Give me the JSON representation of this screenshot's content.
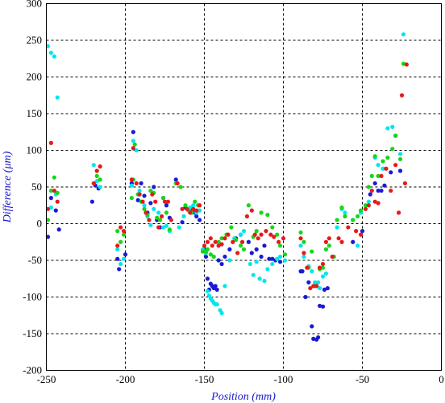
{
  "chart_data": {
    "type": "scatter",
    "xlabel": "Position (mm)",
    "ylabel": "Difference (μm)",
    "xlim": [
      -250,
      0
    ],
    "ylim": [
      -200,
      300
    ],
    "xticks": [
      -250,
      -200,
      -150,
      -100,
      -50,
      0
    ],
    "yticks": [
      -200,
      -150,
      -100,
      -50,
      0,
      50,
      100,
      150,
      200,
      250,
      300
    ],
    "grid": true,
    "series": [
      {
        "color": "#1a1ad6",
        "points": [
          [
            -249,
            -18
          ],
          [
            -247,
            35
          ],
          [
            -244,
            18
          ],
          [
            -242,
            -8
          ],
          [
            -221,
            30
          ],
          [
            -219,
            52
          ],
          [
            -217,
            48
          ],
          [
            -205,
            -48
          ],
          [
            -204,
            -62
          ],
          [
            -200,
            -42
          ],
          [
            -196,
            55
          ],
          [
            -195,
            125
          ],
          [
            -192,
            32
          ],
          [
            -190,
            55
          ],
          [
            -188,
            38
          ],
          [
            -186,
            15
          ],
          [
            -184,
            28
          ],
          [
            -182,
            50
          ],
          [
            -180,
            5
          ],
          [
            -178,
            -5
          ],
          [
            -176,
            35
          ],
          [
            -174,
            25
          ],
          [
            -172,
            8
          ],
          [
            -168,
            60
          ],
          [
            -164,
            2
          ],
          [
            -162,
            22
          ],
          [
            -158,
            18
          ],
          [
            -156,
            15
          ],
          [
            -155,
            10
          ],
          [
            -153,
            5
          ],
          [
            -150,
            -35
          ],
          [
            -149,
            -45
          ],
          [
            -148,
            -75
          ],
          [
            -147,
            -90
          ],
          [
            -146,
            -82
          ],
          [
            -145,
            -85
          ],
          [
            -144,
            -88
          ],
          [
            -143,
            -85
          ],
          [
            -142,
            -90
          ],
          [
            -141,
            -50
          ],
          [
            -139,
            -55
          ],
          [
            -137,
            -45
          ],
          [
            -134,
            -35
          ],
          [
            -130,
            -20
          ],
          [
            -127,
            -15
          ],
          [
            -122,
            -25
          ],
          [
            -120,
            -40
          ],
          [
            -117,
            -35
          ],
          [
            -114,
            -45
          ],
          [
            -112,
            -30
          ],
          [
            -109,
            -48
          ],
          [
            -107,
            -48
          ],
          [
            -105,
            -50
          ],
          [
            -102,
            -52
          ],
          [
            -89,
            -65
          ],
          [
            -88,
            -65
          ],
          [
            -86,
            -100
          ],
          [
            -84,
            -80
          ],
          [
            -82,
            -140
          ],
          [
            -81,
            -157
          ],
          [
            -79,
            -158
          ],
          [
            -78,
            -155
          ],
          [
            -77,
            -112
          ],
          [
            -75,
            -113
          ],
          [
            -74,
            -90
          ],
          [
            -72,
            -88
          ],
          [
            -56,
            -25
          ],
          [
            -50,
            -10
          ],
          [
            -45,
            40
          ],
          [
            -42,
            55
          ],
          [
            -40,
            45
          ],
          [
            -38,
            45
          ],
          [
            -36,
            52
          ],
          [
            -32,
            70
          ],
          [
            -29,
            120
          ],
          [
            -26,
            72
          ]
        ]
      },
      {
        "color": "#00e6ef",
        "points": [
          [
            -249,
            242
          ],
          [
            -247,
            233
          ],
          [
            -245,
            228
          ],
          [
            -243,
            172
          ],
          [
            -247,
            22
          ],
          [
            -244,
            40
          ],
          [
            -220,
            80
          ],
          [
            -218,
            58
          ],
          [
            -216,
            50
          ],
          [
            -205,
            -35
          ],
          [
            -203,
            -55
          ],
          [
            -201,
            -48
          ],
          [
            -196,
            52
          ],
          [
            -195,
            113
          ],
          [
            -193,
            100
          ],
          [
            -191,
            45
          ],
          [
            -188,
            25
          ],
          [
            -186,
            10
          ],
          [
            -184,
            -2
          ],
          [
            -182,
            20
          ],
          [
            -179,
            15
          ],
          [
            -176,
            -5
          ],
          [
            -174,
            -3
          ],
          [
            -172,
            -10
          ],
          [
            -166,
            -5
          ],
          [
            -163,
            10
          ],
          [
            -159,
            22
          ],
          [
            -157,
            25
          ],
          [
            -155,
            15
          ],
          [
            -153,
            18
          ],
          [
            -151,
            -35
          ],
          [
            -149,
            -40
          ],
          [
            -148,
            -92
          ],
          [
            -147,
            -98
          ],
          [
            -146,
            -102
          ],
          [
            -145,
            -105
          ],
          [
            -144,
            -108
          ],
          [
            -143,
            -110
          ],
          [
            -142,
            -110
          ],
          [
            -140,
            -118
          ],
          [
            -139,
            -122
          ],
          [
            -137,
            -85
          ],
          [
            -134,
            -50
          ],
          [
            -131,
            -20
          ],
          [
            -127,
            -15
          ],
          [
            -125,
            -10
          ],
          [
            -121,
            -55
          ],
          [
            -119,
            -70
          ],
          [
            -117,
            -52
          ],
          [
            -115,
            -75
          ],
          [
            -112,
            -78
          ],
          [
            -110,
            -62
          ],
          [
            -107,
            -55
          ],
          [
            -104,
            -48
          ],
          [
            -102,
            -45
          ],
          [
            -99,
            -50
          ],
          [
            -89,
            -30
          ],
          [
            -87,
            -45
          ],
          [
            -84,
            -58
          ],
          [
            -82,
            -65
          ],
          [
            -80,
            -80
          ],
          [
            -78,
            -80
          ],
          [
            -77,
            -88
          ],
          [
            -75,
            -72
          ],
          [
            -73,
            -68
          ],
          [
            -66,
            -5
          ],
          [
            -63,
            20
          ],
          [
            -61,
            15
          ],
          [
            -56,
            5
          ],
          [
            -53,
            -30
          ],
          [
            -51,
            15
          ],
          [
            -48,
            20
          ],
          [
            -46,
            30
          ],
          [
            -44,
            45
          ],
          [
            -42,
            90
          ],
          [
            -40,
            80
          ],
          [
            -37,
            75
          ],
          [
            -34,
            130
          ],
          [
            -31,
            132
          ],
          [
            -29,
            120
          ],
          [
            -26,
            95
          ],
          [
            -24,
            258
          ]
        ]
      },
      {
        "color": "#17d617",
        "points": [
          [
            -249,
            5
          ],
          [
            -247,
            45
          ],
          [
            -245,
            63
          ],
          [
            -243,
            42
          ],
          [
            -220,
            55
          ],
          [
            -218,
            65
          ],
          [
            -216,
            60
          ],
          [
            -205,
            -10
          ],
          [
            -203,
            -25
          ],
          [
            -201,
            -15
          ],
          [
            -196,
            35
          ],
          [
            -195,
            60
          ],
          [
            -194,
            108
          ],
          [
            -192,
            40
          ],
          [
            -190,
            30
          ],
          [
            -188,
            20
          ],
          [
            -186,
            12
          ],
          [
            -184,
            45
          ],
          [
            -182,
            42
          ],
          [
            -180,
            8
          ],
          [
            -178,
            5
          ],
          [
            -176,
            35
          ],
          [
            -174,
            15
          ],
          [
            -172,
            -8
          ],
          [
            -168,
            55
          ],
          [
            -165,
            50
          ],
          [
            -162,
            25
          ],
          [
            -160,
            18
          ],
          [
            -158,
            15
          ],
          [
            -156,
            30
          ],
          [
            -154,
            25
          ],
          [
            -151,
            -38
          ],
          [
            -149,
            -38
          ],
          [
            -148,
            -35
          ],
          [
            -146,
            -42
          ],
          [
            -144,
            -45
          ],
          [
            -141,
            -25
          ],
          [
            -139,
            -20
          ],
          [
            -136,
            -15
          ],
          [
            -133,
            -5
          ],
          [
            -130,
            -22
          ],
          [
            -127,
            -30
          ],
          [
            -125,
            -35
          ],
          [
            -122,
            25
          ],
          [
            -119,
            -18
          ],
          [
            -117,
            -10
          ],
          [
            -114,
            15
          ],
          [
            -110,
            12
          ],
          [
            -107,
            -5
          ],
          [
            -104,
            -15
          ],
          [
            -102,
            -30
          ],
          [
            -99,
            -42
          ],
          [
            -89,
            -12
          ],
          [
            -87,
            -25
          ],
          [
            -84,
            -60
          ],
          [
            -82,
            -38
          ],
          [
            -80,
            -85
          ],
          [
            -79,
            -85
          ],
          [
            -77,
            -62
          ],
          [
            -75,
            -60
          ],
          [
            -73,
            -35
          ],
          [
            -71,
            -30
          ],
          [
            -68,
            -45
          ],
          [
            -66,
            5
          ],
          [
            -63,
            22
          ],
          [
            -61,
            10
          ],
          [
            -56,
            5
          ],
          [
            -53,
            10
          ],
          [
            -51,
            18
          ],
          [
            -48,
            25
          ],
          [
            -46,
            50
          ],
          [
            -44,
            65
          ],
          [
            -42,
            92
          ],
          [
            -40,
            65
          ],
          [
            -37,
            85
          ],
          [
            -34,
            90
          ],
          [
            -31,
            102
          ],
          [
            -29,
            120
          ],
          [
            -26,
            88
          ],
          [
            -24,
            218
          ]
        ]
      },
      {
        "color": "#e61a1a",
        "points": [
          [
            -249,
            20
          ],
          [
            -247,
            110
          ],
          [
            -245,
            45
          ],
          [
            -243,
            30
          ],
          [
            -220,
            55
          ],
          [
            -218,
            72
          ],
          [
            -216,
            78
          ],
          [
            -205,
            -30
          ],
          [
            -203,
            -5
          ],
          [
            -201,
            -10
          ],
          [
            -196,
            60
          ],
          [
            -195,
            103
          ],
          [
            -193,
            55
          ],
          [
            -191,
            40
          ],
          [
            -189,
            30
          ],
          [
            -187,
            15
          ],
          [
            -185,
            5
          ],
          [
            -183,
            40
          ],
          [
            -181,
            30
          ],
          [
            -179,
            -5
          ],
          [
            -177,
            10
          ],
          [
            -175,
            30
          ],
          [
            -173,
            30
          ],
          [
            -171,
            5
          ],
          [
            -167,
            55
          ],
          [
            -164,
            20
          ],
          [
            -161,
            20
          ],
          [
            -159,
            15
          ],
          [
            -157,
            20
          ],
          [
            -155,
            18
          ],
          [
            -153,
            25
          ],
          [
            -150,
            -30
          ],
          [
            -148,
            -25
          ],
          [
            -146,
            -20
          ],
          [
            -145,
            -30
          ],
          [
            -143,
            -25
          ],
          [
            -141,
            -30
          ],
          [
            -139,
            -28
          ],
          [
            -137,
            -20
          ],
          [
            -135,
            -15
          ],
          [
            -132,
            -25
          ],
          [
            -129,
            -40
          ],
          [
            -126,
            -25
          ],
          [
            -123,
            10
          ],
          [
            -120,
            18
          ],
          [
            -118,
            -15
          ],
          [
            -116,
            -20
          ],
          [
            -114,
            -15
          ],
          [
            -111,
            -10
          ],
          [
            -108,
            -15
          ],
          [
            -106,
            -18
          ],
          [
            -103,
            -25
          ],
          [
            -100,
            -20
          ],
          [
            -89,
            -20
          ],
          [
            -87,
            -40
          ],
          [
            -85,
            -60
          ],
          [
            -83,
            -88
          ],
          [
            -81,
            -85
          ],
          [
            -79,
            -85
          ],
          [
            -77,
            -60
          ],
          [
            -75,
            -55
          ],
          [
            -73,
            -25
          ],
          [
            -71,
            -20
          ],
          [
            -69,
            -45
          ],
          [
            -65,
            -20
          ],
          [
            -63,
            -25
          ],
          [
            -59,
            -5
          ],
          [
            -54,
            -10
          ],
          [
            -51,
            -15
          ],
          [
            -48,
            20
          ],
          [
            -46,
            25
          ],
          [
            -44,
            45
          ],
          [
            -42,
            30
          ],
          [
            -40,
            28
          ],
          [
            -38,
            65
          ],
          [
            -35,
            75
          ],
          [
            -32,
            45
          ],
          [
            -29,
            80
          ],
          [
            -27,
            15
          ],
          [
            -25,
            175
          ],
          [
            -23,
            55
          ],
          [
            -22,
            217
          ]
        ]
      }
    ]
  }
}
